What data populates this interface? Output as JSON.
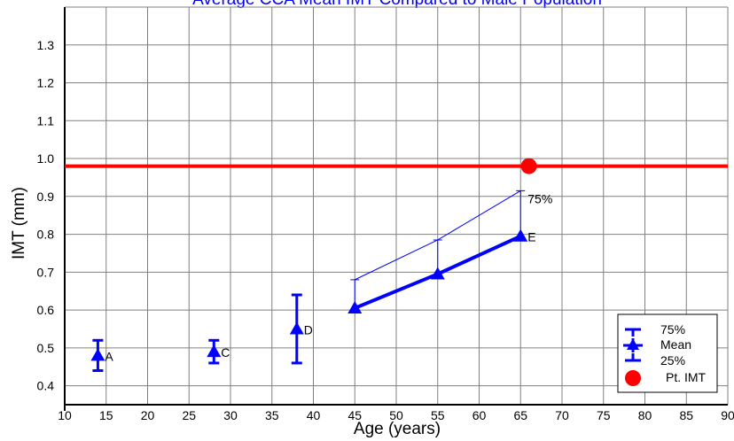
{
  "chart_data": {
    "type": "scatter",
    "title": "Average CCA Mean IMT Compared to Male Population",
    "xlabel": "Age (years)",
    "ylabel": "IMT (mm)",
    "xlim": [
      10,
      90
    ],
    "ylim": [
      0.35,
      1.4
    ],
    "x_ticks": [
      10,
      15,
      20,
      25,
      30,
      35,
      40,
      45,
      50,
      55,
      60,
      65,
      70,
      75,
      80,
      85,
      90
    ],
    "y_ticks": [
      0.4,
      0.5,
      0.6,
      0.7,
      0.8,
      0.9,
      1.0,
      1.1,
      1.2,
      1.3
    ],
    "grid": true,
    "legend_position": "bottom-right",
    "legend": [
      "75%",
      "Mean",
      "25%",
      "Pt. IMT"
    ],
    "groups": [
      {
        "label": "A",
        "x": 14,
        "mean": 0.48,
        "p25": 0.44,
        "p75": 0.52
      },
      {
        "label": "C",
        "x": 28,
        "mean": 0.49,
        "p25": 0.46,
        "p75": 0.52
      },
      {
        "label": "D",
        "x": 38,
        "mean": 0.55,
        "p25": 0.46,
        "p75": 0.64
      },
      {
        "label": "",
        "x": 45,
        "mean": 0.605,
        "p25": 0.605,
        "p75": 0.68
      },
      {
        "label": "",
        "x": 55,
        "mean": 0.695,
        "p25": 0.695,
        "p75": 0.785
      },
      {
        "label": "E",
        "x": 65,
        "mean": 0.795,
        "p25": 0.795,
        "p75": 0.915
      }
    ],
    "series": [
      {
        "name": "Mean",
        "x": [
          45,
          55,
          65
        ],
        "values": [
          0.605,
          0.695,
          0.795
        ],
        "color": "#0000ff"
      },
      {
        "name": "75%",
        "x": [
          45,
          55,
          65
        ],
        "values": [
          0.68,
          0.785,
          0.915
        ],
        "color": "#0000ff"
      }
    ],
    "series_end_label": "75%",
    "patient_imt": {
      "name": "Pt. IMT",
      "x": 66,
      "value": 0.98,
      "color": "#ff0000"
    },
    "colors": {
      "series": "#0000ff",
      "patient": "#ff0000",
      "grid": "#808080"
    }
  }
}
